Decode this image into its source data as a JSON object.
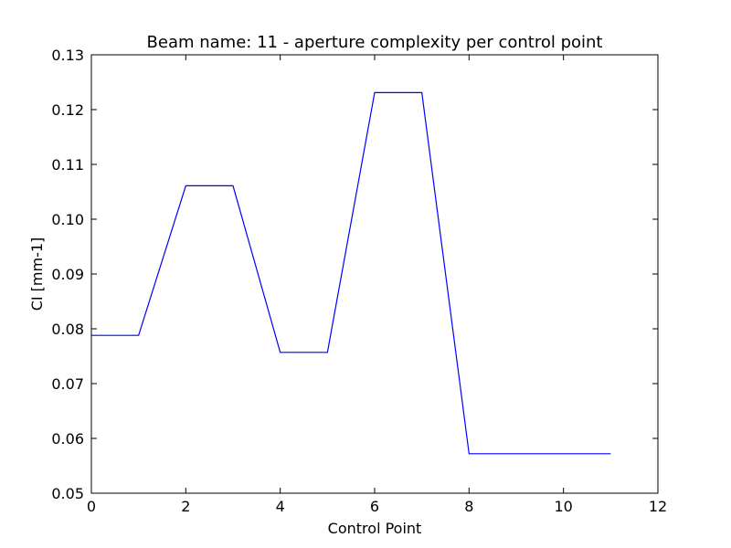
{
  "chart_data": {
    "type": "line",
    "title": "Beam name: 11  - aperture complexity per control point",
    "xlabel": "Control Point",
    "ylabel": "CI [mm-1]",
    "xlim": [
      0,
      12
    ],
    "ylim": [
      0.05,
      0.13
    ],
    "xticks": [
      "0",
      "2",
      "4",
      "6",
      "8",
      "10",
      "12"
    ],
    "yticks": [
      "0.05",
      "0.06",
      "0.07",
      "0.08",
      "0.09",
      "0.10",
      "0.11",
      "0.12",
      "0.13"
    ],
    "grid": false,
    "series": [
      {
        "color": "#0000ff",
        "x": [
          0,
          1,
          2,
          3,
          4,
          5,
          6,
          7,
          8,
          9,
          10,
          11
        ],
        "y": [
          0.0788,
          0.0788,
          0.1061,
          0.1061,
          0.0757,
          0.0757,
          0.1231,
          0.1231,
          0.0572,
          0.0572,
          0.0572,
          0.0572
        ]
      }
    ]
  }
}
